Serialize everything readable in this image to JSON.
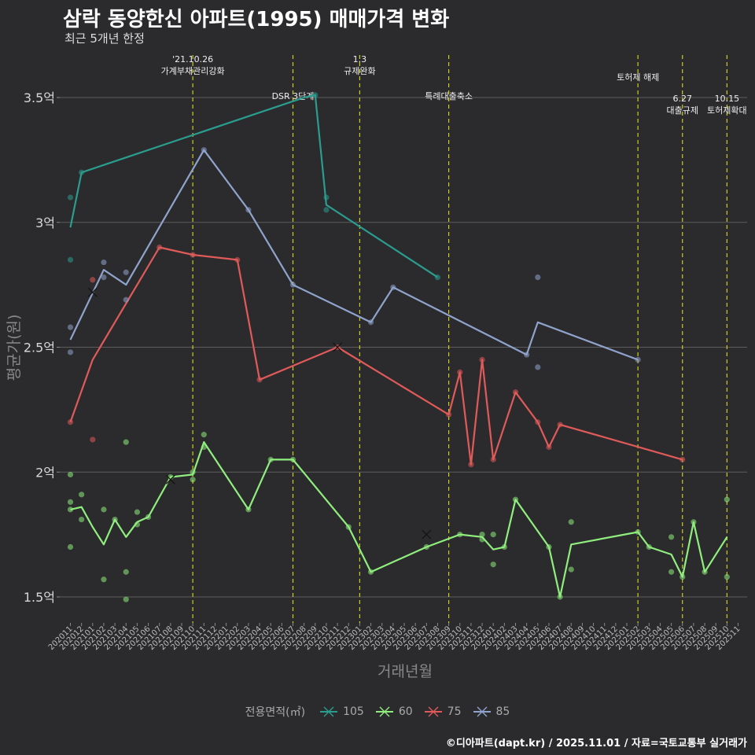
{
  "title": "삼락 동양한신 아파트(1995) 매매가격 변화",
  "subtitle": "최근 5개년 한정",
  "caption": "©디아파트(dapt.kr) / 2025.11.01 / 자료=국토교통부 실거래가",
  "chart_data": {
    "type": "line",
    "title": "삼락 동양한신 아파트(1995) 매매가격 변화",
    "xlabel": "거래년월",
    "ylabel": "평균가(원)",
    "ylim": [
      1.4,
      3.65
    ],
    "grid": true,
    "legend": {
      "title": "전용면적(㎡)",
      "position": "bottom"
    },
    "yticks": [
      {
        "value": 1.5,
        "label": "1.5억"
      },
      {
        "value": 2.0,
        "label": "2억"
      },
      {
        "value": 2.5,
        "label": "2.5억"
      },
      {
        "value": 3.0,
        "label": "3억"
      },
      {
        "value": 3.5,
        "label": "3.5억"
      }
    ],
    "categories": [
      "202011",
      "202012",
      "202101",
      "202102",
      "202103",
      "202104",
      "202105",
      "202106",
      "202107",
      "202108",
      "202109",
      "202110",
      "202111",
      "202112",
      "202201",
      "202202",
      "202203",
      "202204",
      "202205",
      "202206",
      "202207",
      "202208",
      "202209",
      "202210",
      "202211",
      "202212",
      "202301",
      "202302",
      "202303",
      "202304",
      "202305",
      "202306",
      "202307",
      "202308",
      "202309",
      "202310",
      "202311",
      "202312",
      "202401",
      "202402",
      "202403",
      "202404",
      "202405",
      "202406",
      "202407",
      "202408",
      "202409",
      "202410",
      "202411",
      "202412",
      "202501",
      "202502",
      "202503",
      "202504",
      "202505",
      "202506",
      "202507",
      "202508",
      "202509",
      "202510",
      "202511"
    ],
    "annotations": [
      {
        "x": "202110",
        "lines": [
          "'21.10.26",
          "가계부채관리강화"
        ],
        "level": 0
      },
      {
        "x": "202207",
        "lines": [
          "DSR 3단계"
        ],
        "level": 2
      },
      {
        "x": "202301",
        "lines": [
          "1.3",
          "규제완화"
        ],
        "level": 0
      },
      {
        "x": "202309",
        "lines": [
          "특례대출축소"
        ],
        "level": 2
      },
      {
        "x": "202502",
        "lines": [
          "토허제 해제"
        ],
        "level": 1
      },
      {
        "x": "202506",
        "lines": [
          "6.27",
          "대출규제"
        ],
        "level": 3
      },
      {
        "x": "202510",
        "lines": [
          "10.15",
          "토허제확대"
        ],
        "level": 3
      }
    ],
    "series": [
      {
        "name": "105",
        "color": "#2a9d8f",
        "line": [
          [
            "202011",
            2.98
          ],
          [
            "202012",
            3.2
          ],
          [
            "202208",
            3.5
          ],
          [
            "202209",
            3.51
          ],
          [
            "202210",
            3.07
          ],
          [
            "202308",
            2.78
          ]
        ],
        "points": [
          [
            "202011",
            3.1
          ],
          [
            "202011",
            2.85
          ],
          [
            "202012",
            3.2
          ],
          [
            "202209",
            3.51
          ],
          [
            "202210",
            3.1
          ],
          [
            "202210",
            3.05
          ],
          [
            "202308",
            2.78
          ]
        ],
        "crosses": []
      },
      {
        "name": "60",
        "color": "#90ee7e",
        "line": [
          [
            "202011",
            1.85
          ],
          [
            "202012",
            1.86
          ],
          [
            "202101",
            1.78
          ],
          [
            "202102",
            1.71
          ],
          [
            "202103",
            1.81
          ],
          [
            "202104",
            1.74
          ],
          [
            "202105",
            1.8
          ],
          [
            "202106",
            1.82
          ],
          [
            "202107",
            1.9
          ],
          [
            "202108",
            1.98
          ],
          [
            "202110",
            1.99
          ],
          [
            "202111",
            2.12
          ],
          [
            "202203",
            1.85
          ],
          [
            "202205",
            2.05
          ],
          [
            "202207",
            2.05
          ],
          [
            "202212",
            1.78
          ],
          [
            "202302",
            1.6
          ],
          [
            "202307",
            1.7
          ],
          [
            "202310",
            1.75
          ],
          [
            "202312",
            1.74
          ],
          [
            "202401",
            1.69
          ],
          [
            "202402",
            1.7
          ],
          [
            "202403",
            1.89
          ],
          [
            "202406",
            1.7
          ],
          [
            "202407",
            1.5
          ],
          [
            "202408",
            1.71
          ],
          [
            "202502",
            1.76
          ],
          [
            "202503",
            1.7
          ],
          [
            "202505",
            1.67
          ],
          [
            "202506",
            1.58
          ],
          [
            "202507",
            1.8
          ],
          [
            "202508",
            1.6
          ],
          [
            "202510",
            1.74
          ]
        ],
        "points": [
          [
            "202011",
            1.99
          ],
          [
            "202011",
            1.88
          ],
          [
            "202011",
            1.85
          ],
          [
            "202011",
            1.7
          ],
          [
            "202012",
            1.91
          ],
          [
            "202012",
            1.81
          ],
          [
            "202102",
            1.85
          ],
          [
            "202102",
            1.57
          ],
          [
            "202103",
            1.81
          ],
          [
            "202104",
            2.12
          ],
          [
            "202104",
            1.6
          ],
          [
            "202104",
            1.49
          ],
          [
            "202105",
            1.84
          ],
          [
            "202105",
            1.79
          ],
          [
            "202106",
            1.82
          ],
          [
            "202108",
            1.98
          ],
          [
            "202110",
            2.0
          ],
          [
            "202110",
            1.97
          ],
          [
            "202111",
            2.15
          ],
          [
            "202111",
            2.1
          ],
          [
            "202203",
            1.85
          ],
          [
            "202205",
            2.05
          ],
          [
            "202207",
            2.05
          ],
          [
            "202212",
            1.78
          ],
          [
            "202302",
            1.6
          ],
          [
            "202307",
            1.7
          ],
          [
            "202310",
            1.75
          ],
          [
            "202312",
            1.75
          ],
          [
            "202312",
            1.73
          ],
          [
            "202401",
            1.75
          ],
          [
            "202401",
            1.63
          ],
          [
            "202402",
            1.7
          ],
          [
            "202403",
            1.89
          ],
          [
            "202406",
            1.7
          ],
          [
            "202407",
            1.5
          ],
          [
            "202408",
            1.8
          ],
          [
            "202408",
            1.61
          ],
          [
            "202502",
            1.76
          ],
          [
            "202503",
            1.7
          ],
          [
            "202505",
            1.74
          ],
          [
            "202505",
            1.6
          ],
          [
            "202506",
            1.58
          ],
          [
            "202507",
            1.8
          ],
          [
            "202508",
            1.6
          ],
          [
            "202510",
            1.89
          ],
          [
            "202510",
            1.58
          ]
        ],
        "crosses": [
          [
            "202108",
            1.97
          ],
          [
            "202307",
            1.75
          ]
        ]
      },
      {
        "name": "75",
        "color": "#e05a5a",
        "line": [
          [
            "202011",
            2.2
          ],
          [
            "202101",
            2.45
          ],
          [
            "202107",
            2.9
          ],
          [
            "202110",
            2.87
          ],
          [
            "202202",
            2.85
          ],
          [
            "202204",
            2.37
          ],
          [
            "202211",
            2.5
          ],
          [
            "202309",
            2.23
          ],
          [
            "202310",
            2.4
          ],
          [
            "202311",
            2.03
          ],
          [
            "202312",
            2.45
          ],
          [
            "202401",
            2.05
          ],
          [
            "202403",
            2.32
          ],
          [
            "202405",
            2.2
          ],
          [
            "202406",
            2.1
          ],
          [
            "202407",
            2.19
          ],
          [
            "202506",
            2.05
          ]
        ],
        "points": [
          [
            "202011",
            2.2
          ],
          [
            "202101",
            2.77
          ],
          [
            "202101",
            2.13
          ],
          [
            "202107",
            2.9
          ],
          [
            "202110",
            2.87
          ],
          [
            "202202",
            2.85
          ],
          [
            "202204",
            2.37
          ],
          [
            "202211",
            2.5
          ],
          [
            "202309",
            2.23
          ],
          [
            "202310",
            2.4
          ],
          [
            "202311",
            2.03
          ],
          [
            "202312",
            2.45
          ],
          [
            "202401",
            2.05
          ],
          [
            "202403",
            2.32
          ],
          [
            "202405",
            2.2
          ],
          [
            "202406",
            2.1
          ],
          [
            "202407",
            2.19
          ],
          [
            "202506",
            2.05
          ]
        ],
        "crosses": [
          [
            "202211",
            2.5
          ]
        ]
      },
      {
        "name": "85",
        "color": "#8fa3cc",
        "line": [
          [
            "202011",
            2.53
          ],
          [
            "202102",
            2.81
          ],
          [
            "202104",
            2.75
          ],
          [
            "202111",
            3.29
          ],
          [
            "202203",
            3.05
          ],
          [
            "202207",
            2.75
          ],
          [
            "202302",
            2.6
          ],
          [
            "202304",
            2.74
          ],
          [
            "202404",
            2.47
          ],
          [
            "202405",
            2.6
          ],
          [
            "202502",
            2.45
          ]
        ],
        "points": [
          [
            "202011",
            2.58
          ],
          [
            "202011",
            2.48
          ],
          [
            "202102",
            2.84
          ],
          [
            "202102",
            2.78
          ],
          [
            "202104",
            2.8
          ],
          [
            "202104",
            2.69
          ],
          [
            "202111",
            3.29
          ],
          [
            "202203",
            3.05
          ],
          [
            "202207",
            2.75
          ],
          [
            "202302",
            2.6
          ],
          [
            "202304",
            2.74
          ],
          [
            "202404",
            2.47
          ],
          [
            "202405",
            2.78
          ],
          [
            "202405",
            2.42
          ],
          [
            "202502",
            2.45
          ]
        ],
        "crosses": [
          [
            "202101",
            2.72
          ]
        ]
      }
    ]
  }
}
